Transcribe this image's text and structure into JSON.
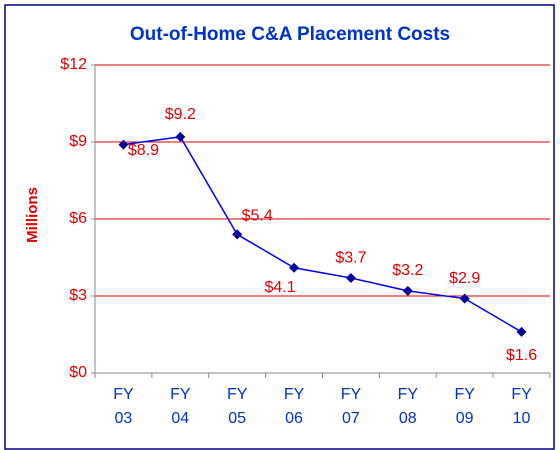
{
  "chart_data": {
    "type": "line",
    "title": "Out-of-Home C&A Placement Costs",
    "y_label": "Millions",
    "categories": [
      "FY 03",
      "FY 04",
      "FY 05",
      "FY 06",
      "FY 07",
      "FY 08",
      "FY 09",
      "FY 10"
    ],
    "values": [
      8.9,
      9.2,
      5.4,
      4.1,
      3.7,
      3.2,
      2.9,
      1.6
    ],
    "value_labels": [
      "$8.9",
      "$9.2",
      "$5.4",
      "$4.1",
      "$3.7",
      "$3.2",
      "$2.9",
      "$1.6"
    ],
    "color": "#0000ff",
    "ylim": [
      0,
      12
    ],
    "yticks": [
      {
        "value": 0,
        "label": "$0"
      },
      {
        "value": 3,
        "label": "$3"
      },
      {
        "value": 6,
        "label": "$6"
      },
      {
        "value": 9,
        "label": "$9"
      },
      {
        "value": 12,
        "label": "$12"
      }
    ],
    "grid": true
  }
}
